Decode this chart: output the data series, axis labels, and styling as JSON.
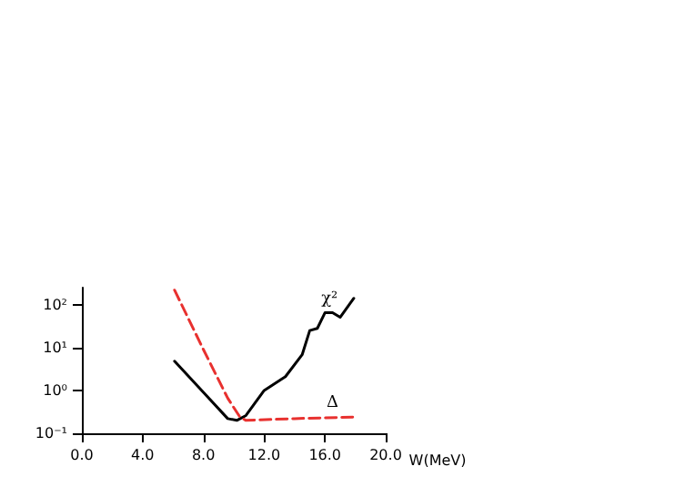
{
  "chart_data": {
    "type": "line",
    "xlabel": "W(MeV)",
    "series": [
      {
        "color": "#000000",
        "line_style": "solid",
        "x": [
          6.1,
          8,
          9.6,
          10.2,
          10.8,
          12,
          13.4,
          14.5,
          15,
          15.5,
          16,
          16.5,
          17,
          17.9
        ],
        "values": [
          4.8,
          0.9,
          0.22,
          0.2,
          0.26,
          1.0,
          2.1,
          6.8,
          25,
          28,
          65,
          65,
          51,
          141
        ]
      },
      {
        "color": "#e8312f",
        "line_style": "dashed",
        "x": [
          6.1,
          8,
          9.6,
          10.4,
          10.8,
          14,
          18
        ],
        "values": [
          219,
          9,
          0.66,
          0.24,
          0.2,
          0.22,
          0.24
        ]
      }
    ],
    "xlim": [
      0,
      20
    ],
    "xticks": [
      {
        "value": 0,
        "label": "0.0"
      },
      {
        "value": 4,
        "label": "4.0"
      },
      {
        "value": 8,
        "label": "8.0"
      },
      {
        "value": 12,
        "label": "12.0"
      },
      {
        "value": 16,
        "label": "16.0"
      },
      {
        "value": 20,
        "label": "20.0"
      }
    ],
    "ylim": [
      0.1,
      250
    ],
    "yticks": [
      {
        "value": 0.1,
        "label": "10⁻¹"
      },
      {
        "value": 1,
        "label": "10⁰"
      },
      {
        "value": 10,
        "label": "10¹"
      },
      {
        "value": 100,
        "label": "10²"
      }
    ],
    "log": "y",
    "grid": false,
    "marker": "none",
    "annotations": [
      {
        "text": "χ²",
        "x": 16.3,
        "y": 65
      },
      {
        "text": "Δ",
        "x": 16.5,
        "y": 0.24
      }
    ]
  }
}
